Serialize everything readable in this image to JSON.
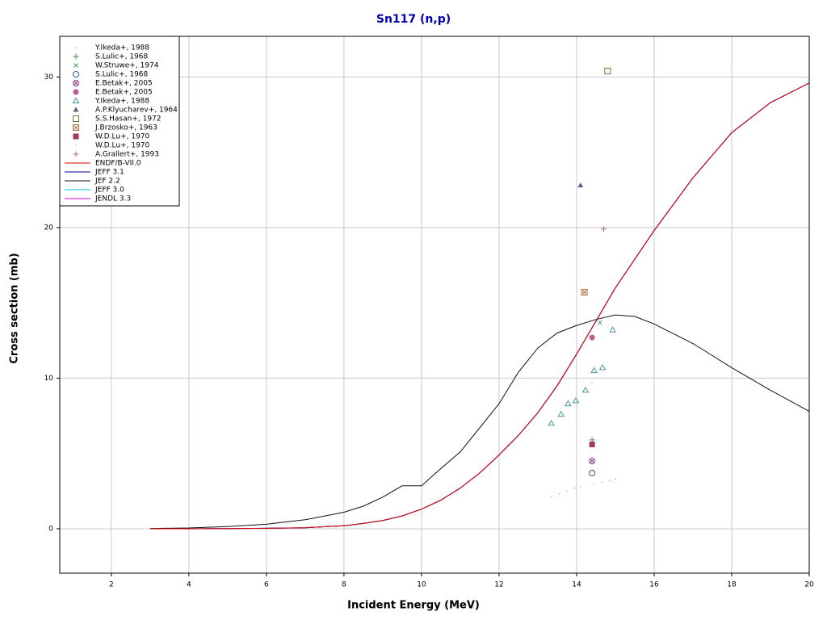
{
  "chart_data": {
    "type": "line",
    "title": "Sn117 (n,p)",
    "x_label": "Incident Energy (MeV)",
    "y_label": "Cross section (mb)",
    "xlim": [
      0.67,
      20
    ],
    "ylim": [
      -2.95,
      32.7
    ],
    "xticks": [
      2,
      4,
      6,
      8,
      10,
      12,
      14,
      16,
      18,
      20
    ],
    "yticks": [
      0,
      10,
      20,
      30
    ],
    "grid": true,
    "legend": "upper-left",
    "series": [
      {
        "name": "Y.Ikeda+, 1988",
        "type": "scatter",
        "marker": "dot",
        "color": "#5a6a8a",
        "x": [
          13.35,
          13.55,
          13.75,
          13.95,
          14.1,
          14.45,
          14.65,
          14.85,
          15.0
        ],
        "values": [
          2.1,
          2.3,
          2.5,
          2.7,
          2.8,
          3.0,
          3.1,
          3.2,
          3.3
        ]
      },
      {
        "name": "S.Lulic+, 1968",
        "type": "scatter",
        "marker": "plus",
        "color": "#3a9a3a",
        "x": [
          14.4
        ],
        "values": [
          5.9
        ]
      },
      {
        "name": "W.Struwe+, 1974",
        "type": "scatter",
        "marker": "x",
        "color": "#3aa070",
        "x": [
          14.6
        ],
        "values": [
          13.7
        ]
      },
      {
        "name": "S.Lulic+, 1968",
        "type": "scatter",
        "marker": "circle",
        "color": "#3050a0",
        "x": [
          14.4
        ],
        "values": [
          3.7
        ]
      },
      {
        "name": "E.Betak+, 2005",
        "type": "scatter",
        "marker": "circled-x",
        "color": "#8a3a8a",
        "x": [
          14.4
        ],
        "values": [
          4.5
        ]
      },
      {
        "name": "E.Betak+, 2005",
        "type": "scatter",
        "marker": "filled-circle",
        "color": "#c05a90",
        "x": [
          14.4
        ],
        "values": [
          12.7
        ]
      },
      {
        "name": "Y.Ikeda+, 1988",
        "type": "scatter",
        "marker": "triangle",
        "color": "#4a9a9a",
        "x": [
          13.35,
          13.6,
          13.78,
          13.98,
          14.23,
          14.45,
          14.67,
          14.93
        ],
        "values": [
          7.0,
          7.6,
          8.3,
          8.5,
          9.2,
          10.5,
          10.7,
          13.2
        ]
      },
      {
        "name": "A.P.Klyucharev+, 1964",
        "type": "scatter",
        "marker": "filled-triangle",
        "color": "#5a6080",
        "x": [
          14.1
        ],
        "values": [
          22.8
        ]
      },
      {
        "name": "S.S.Hasan+, 1972",
        "type": "scatter",
        "marker": "square",
        "color": "#6a7a2a",
        "x": [
          14.8
        ],
        "values": [
          30.4
        ]
      },
      {
        "name": "J.Brzosko+, 1963",
        "type": "scatter",
        "marker": "boxed-x",
        "color": "#b07040",
        "x": [
          14.2
        ],
        "values": [
          15.7
        ]
      },
      {
        "name": "W.D.Lu+, 1970",
        "type": "scatter",
        "marker": "filled-square",
        "color": "#a03a5a",
        "x": [
          14.4
        ],
        "values": [
          5.6
        ]
      },
      {
        "name": "W.D.Lu+, 1970",
        "type": "scatter",
        "marker": "dot",
        "color": "#808080",
        "x": [
          14.4
        ],
        "values": [
          9.7
        ]
      },
      {
        "name": "A.Grallert+, 1993",
        "type": "scatter",
        "marker": "plus",
        "color": "#a07070",
        "x": [
          14.7
        ],
        "values": [
          19.9
        ]
      },
      {
        "name": "ENDF/B-VII.0",
        "type": "line",
        "color": "#e00000",
        "x": [
          3,
          4,
          5,
          6,
          7,
          8,
          8.5,
          9,
          9.5,
          10,
          10.5,
          11,
          11.5,
          12,
          12.5,
          13,
          13.5,
          14,
          14.5,
          15,
          16,
          17,
          18,
          19,
          20
        ],
        "values": [
          0,
          0,
          0.01,
          0.03,
          0.07,
          0.2,
          0.35,
          0.55,
          0.85,
          1.3,
          1.9,
          2.7,
          3.7,
          4.9,
          6.2,
          7.7,
          9.5,
          11.6,
          13.8,
          16,
          19.8,
          23.3,
          26.3,
          28.3,
          29.6
        ]
      },
      {
        "name": "JEFF 3.1",
        "type": "line",
        "color": "#00008b",
        "x": [
          3,
          4,
          5,
          6,
          7,
          8,
          8.5,
          9,
          9.5,
          10,
          10.5,
          11,
          11.5,
          12,
          12.5,
          13,
          13.5,
          14,
          14.5,
          15,
          16,
          17,
          18,
          19,
          20
        ],
        "values": [
          0,
          0,
          0.01,
          0.03,
          0.07,
          0.2,
          0.35,
          0.55,
          0.85,
          1.3,
          1.9,
          2.7,
          3.7,
          4.9,
          6.2,
          7.7,
          9.5,
          11.6,
          13.8,
          16,
          19.8,
          23.3,
          26.3,
          28.3,
          29.6
        ]
      },
      {
        "name": "JEF 2.2",
        "type": "line",
        "color": "#101010",
        "x": [
          3,
          4,
          5,
          6,
          7,
          8,
          8.5,
          9,
          9.5,
          10,
          10.5,
          11,
          11.5,
          12,
          12.5,
          13,
          13.5,
          14,
          14.5,
          15,
          15.5,
          16,
          17,
          18,
          19,
          20
        ],
        "values": [
          0.02,
          0.05,
          0.15,
          0.3,
          0.6,
          1.1,
          1.5,
          2.1,
          2.85,
          2.85,
          4.0,
          5.1,
          6.7,
          8.3,
          10.4,
          12.0,
          13.0,
          13.5,
          13.9,
          14.2,
          14.1,
          13.6,
          12.3,
          10.7,
          9.2,
          7.8
        ]
      },
      {
        "name": "JEFF 3.0",
        "type": "line",
        "color": "#00c8d8",
        "x": [
          3,
          4,
          5,
          6,
          7,
          8,
          8.5,
          9,
          9.5,
          10,
          10.5,
          11,
          11.5,
          12,
          12.5,
          13,
          13.5,
          14,
          14.5,
          15,
          16,
          17,
          18,
          19,
          20
        ],
        "values": [
          0,
          0,
          0.01,
          0.03,
          0.07,
          0.2,
          0.35,
          0.55,
          0.85,
          1.3,
          1.9,
          2.7,
          3.7,
          4.9,
          6.2,
          7.7,
          9.5,
          11.6,
          13.8,
          16,
          19.8,
          23.3,
          26.3,
          28.3,
          29.6
        ]
      },
      {
        "name": "JENDL 3.3",
        "type": "line",
        "color": "#d000d0",
        "x": [
          3,
          4,
          5,
          6,
          7,
          8,
          8.5,
          9,
          9.5,
          10,
          10.5,
          11,
          11.5,
          12,
          12.5,
          13,
          13.5,
          14,
          14.5,
          15,
          16,
          17,
          18,
          19,
          20
        ],
        "values": [
          0,
          0,
          0.01,
          0.03,
          0.07,
          0.2,
          0.35,
          0.55,
          0.85,
          1.3,
          1.9,
          2.7,
          3.7,
          4.9,
          6.2,
          7.7,
          9.5,
          11.6,
          13.8,
          16,
          19.8,
          23.3,
          26.3,
          28.3,
          29.6
        ]
      }
    ]
  }
}
